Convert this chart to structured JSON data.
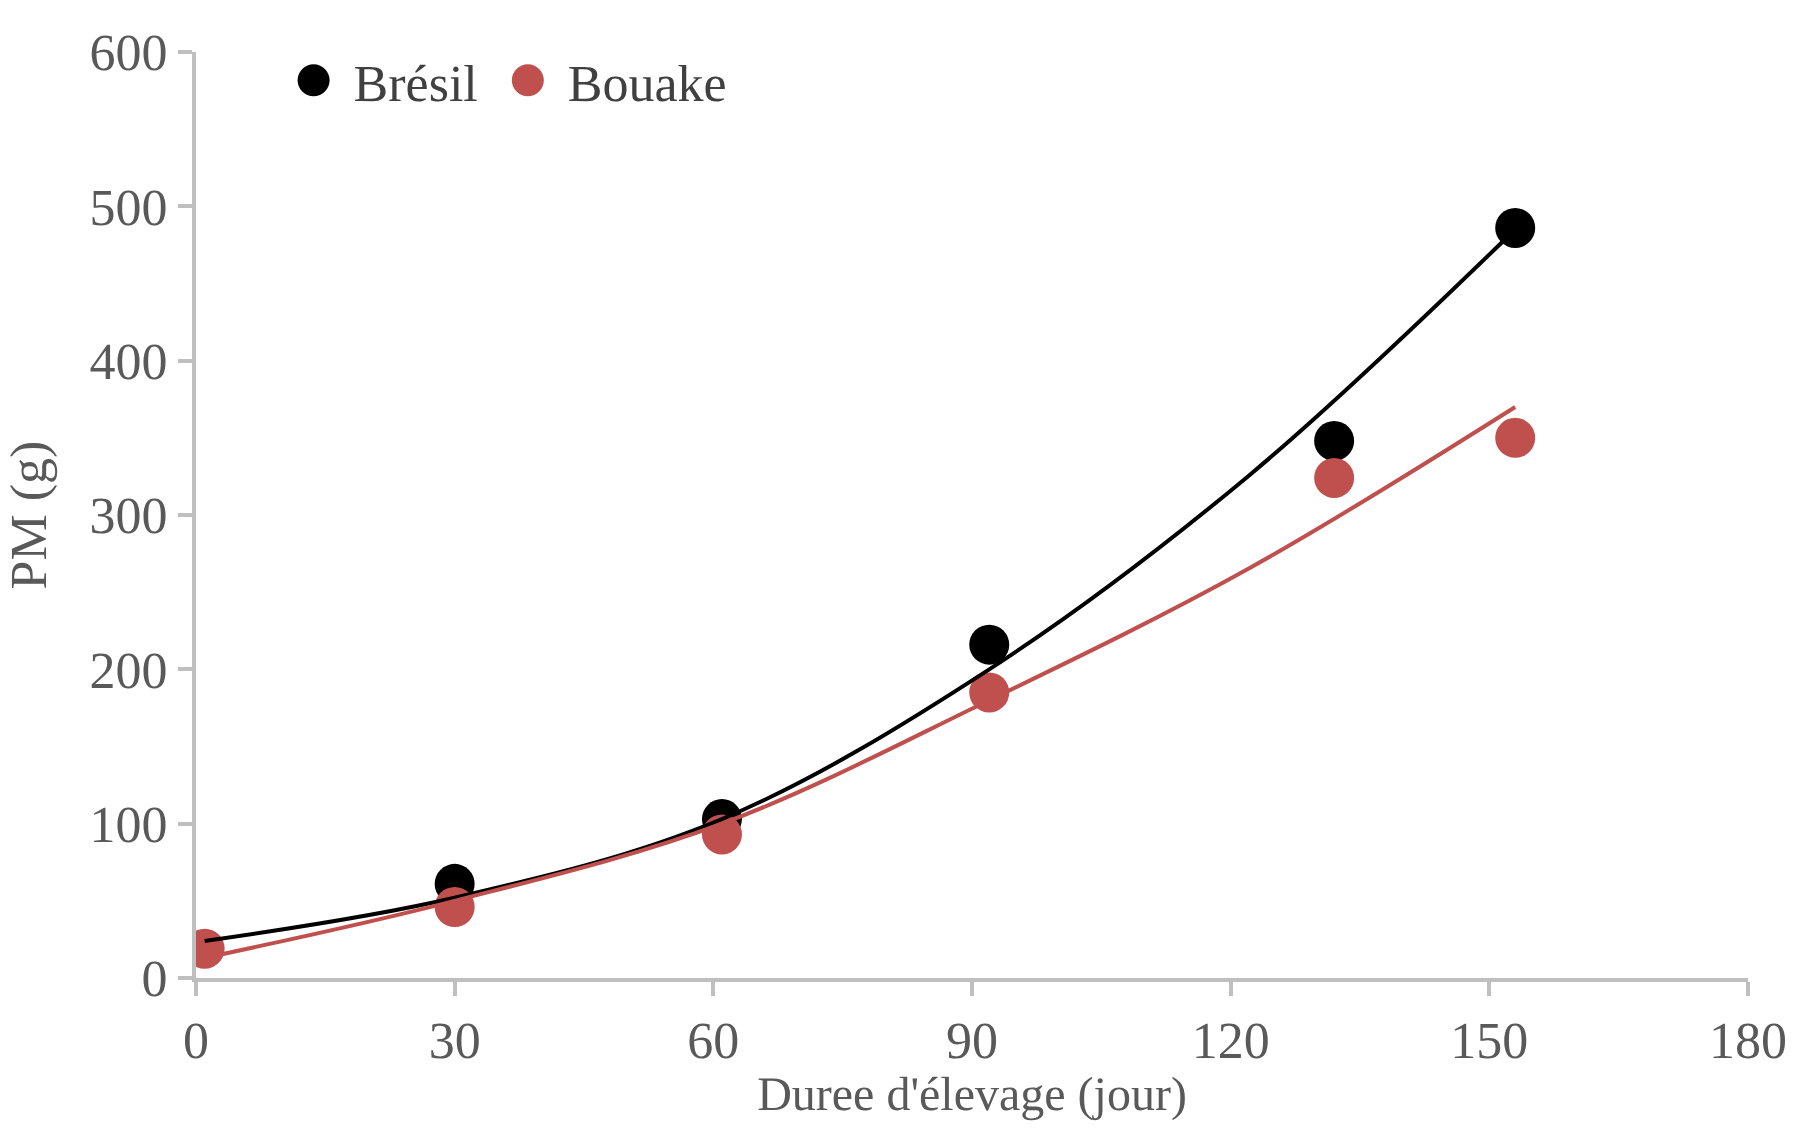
{
  "chart_data": {
    "type": "scatter",
    "xlabel": "Duree d'élevage (jour)",
    "ylabel": "PM (g)",
    "xlim": [
      0,
      180
    ],
    "xticks": [
      0,
      30,
      60,
      90,
      120,
      150,
      180
    ],
    "ylim": [
      0,
      600
    ],
    "yticks": [
      0,
      100,
      200,
      300,
      400,
      500,
      600
    ],
    "legend": "top left",
    "marker": "circle",
    "series": [
      {
        "name": "Brésil",
        "color": "#000000",
        "x": [
          30,
          61,
          92,
          132,
          153
        ],
        "values": [
          61,
          103,
          216,
          348,
          486
        ]
      },
      {
        "name": "Bouake",
        "color": "#c0504d",
        "x": [
          1,
          30,
          61,
          92,
          132,
          153
        ],
        "values": [
          19,
          46,
          93,
          185,
          324,
          350
        ]
      },
      {
        "type": "line",
        "marker": "none",
        "color": "#000000",
        "x": [
          1,
          30,
          61,
          92,
          122,
          153
        ],
        "values": [
          24,
          52,
          103,
          200,
          325,
          485
        ]
      },
      {
        "type": "line",
        "marker": "none",
        "color": "#c0504d",
        "x": [
          1,
          30,
          61,
          92,
          122,
          153
        ],
        "values": [
          13,
          50,
          100,
          180,
          265,
          370
        ]
      }
    ]
  }
}
